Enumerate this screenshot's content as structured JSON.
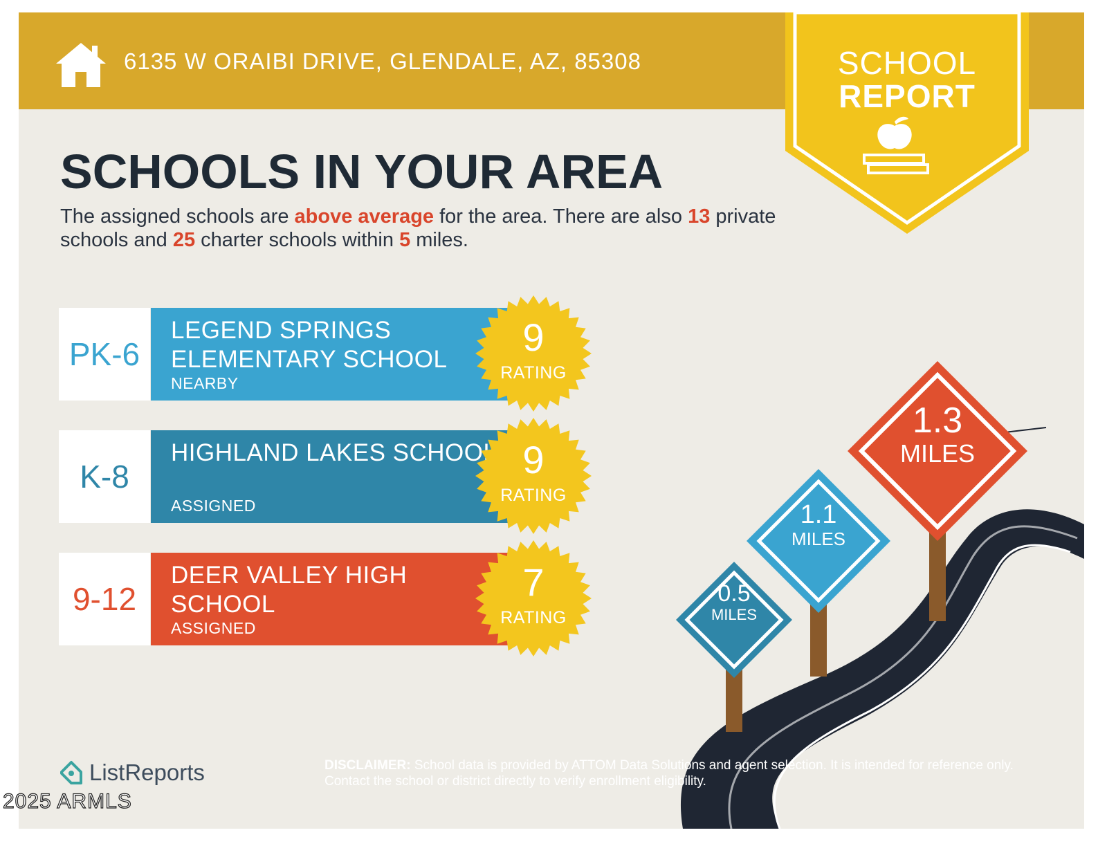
{
  "header": {
    "address": "6135 W ORAIBI DRIVE, GLENDALE, AZ, 85308",
    "badge_line1": "SCHOOL",
    "badge_line2": "REPORT",
    "band_color": "#d8a82b",
    "badge_color": "#f2c41c"
  },
  "main": {
    "title": "SCHOOLS IN YOUR AREA",
    "intro": {
      "p1": "The assigned schools are ",
      "highlight1": "above average",
      "p2": " for the area. There are also ",
      "private_count": "13",
      "p3": " private schools and ",
      "charter_count": "25",
      "p4": " charter schools within ",
      "miles": "5",
      "p5": " miles."
    }
  },
  "schools": [
    {
      "grade": "PK-6",
      "name": "LEGEND SPRINGS ELEMENTARY SCHOOL",
      "tag": "NEARBY",
      "rating": "9",
      "rating_label": "RATING",
      "color": "#3aa4d0"
    },
    {
      "grade": "K-8",
      "name": "HIGHLAND LAKES SCHOOL",
      "tag": "ASSIGNED",
      "rating": "9",
      "rating_label": "RATING",
      "color": "#2f86a8"
    },
    {
      "grade": "9-12",
      "name": "DEER VALLEY HIGH SCHOOL",
      "tag": "ASSIGNED",
      "rating": "7",
      "rating_label": "RATING",
      "color": "#e0502f"
    }
  ],
  "signs": [
    {
      "value": "0.5",
      "unit": "MILES",
      "color": "#2f86a8"
    },
    {
      "value": "1.1",
      "unit": "MILES",
      "color": "#3aa4d0"
    },
    {
      "value": "1.3",
      "unit": "MILES",
      "color": "#e0502f"
    }
  ],
  "footer": {
    "logo": "ListReports",
    "disclaimer_label": "DISCLAIMER:",
    "disclaimer_text": " School data is provided by ATTOM Data Solutions and agent selection. It is intended for reference only. Contact the school or district directly to verify enrollment eligibility.",
    "watermark": "2025 ARMLS"
  }
}
